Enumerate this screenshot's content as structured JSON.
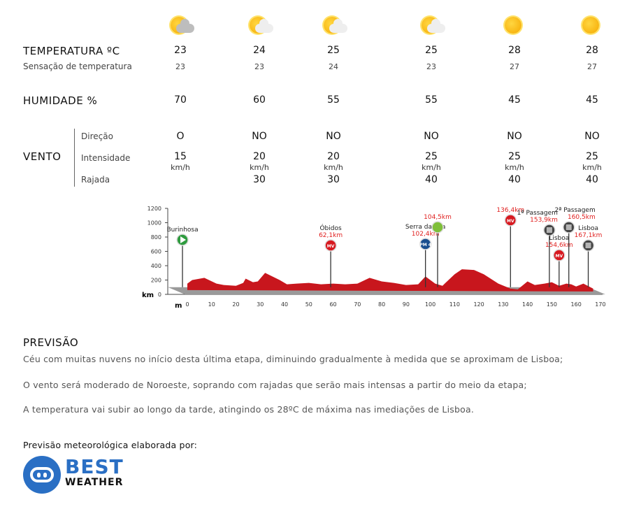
{
  "columns": [
    {
      "icon": "sun-grey-cloud-icon",
      "cloud": "#bdbdbd",
      "temp": "23",
      "feels": "23",
      "humidity": "70",
      "dir": "O",
      "speed": "15",
      "unit": "km/h",
      "gust": ""
    },
    {
      "icon": "sun-cloud-icon",
      "cloud": "#eeeeee",
      "temp": "24",
      "feels": "23",
      "humidity": "60",
      "dir": "NO",
      "speed": "20",
      "unit": "km/h",
      "gust": "30"
    },
    {
      "icon": "sun-cloud-icon",
      "cloud": "#eeeeee",
      "temp": "25",
      "feels": "24",
      "humidity": "55",
      "dir": "NO",
      "speed": "20",
      "unit": "km/h",
      "gust": "30"
    },
    {
      "icon": "sun-cloud-icon",
      "cloud": "#eeeeee",
      "temp": "25",
      "feels": "23",
      "humidity": "55",
      "dir": "NO",
      "speed": "25",
      "unit": "km/h",
      "gust": "40"
    },
    {
      "icon": "sun-icon",
      "cloud": "",
      "temp": "28",
      "feels": "27",
      "humidity": "45",
      "dir": "NO",
      "speed": "25",
      "unit": "km/h",
      "gust": "40"
    },
    {
      "icon": "sun-icon",
      "cloud": "",
      "temp": "28",
      "feels": "27",
      "humidity": "45",
      "dir": "NO",
      "speed": "25",
      "unit": "km/h",
      "gust": "40"
    }
  ],
  "labels": {
    "temperature": "TEMPERATURA  ºC",
    "feels": "Sensação de temperatura",
    "humidity": "HUMIDADE %",
    "wind": "VENTO",
    "direction": "Direção",
    "intensity": "Intensidade",
    "gust": "Rajada"
  },
  "forecast": {
    "title": "PREVISÃO",
    "paragraphs": [
      "Céu com muitas nuvens no início desta última etapa, diminuindo gradualmente à medida que se aproximam de Lisboa;",
      "O vento será moderado de Noroeste, soprando com rajadas que serão mais intensas a partir do meio da etapa;",
      "A temperatura vai subir ao longo da tarde, atingindo os 28ºC de máxima nas imediações de Lisboa."
    ],
    "credit": "Previsão meteorológica elaborada por:",
    "logo": {
      "line1": "BEST",
      "line2": "WEATHER",
      "color": "#2a6fc4"
    }
  },
  "profile": {
    "x_unit": "km",
    "y_unit": "m",
    "x_ticks": [
      0,
      10,
      20,
      30,
      40,
      50,
      60,
      70,
      80,
      90,
      100,
      110,
      120,
      130,
      140,
      150,
      160,
      170
    ],
    "y_ticks": [
      0,
      200,
      400,
      600,
      800,
      1000,
      1200
    ],
    "elevation": [
      [
        0,
        150
      ],
      [
        2,
        200
      ],
      [
        7,
        230
      ],
      [
        12,
        150
      ],
      [
        15,
        130
      ],
      [
        20,
        120
      ],
      [
        23,
        160
      ],
      [
        24,
        220
      ],
      [
        27,
        170
      ],
      [
        29,
        180
      ],
      [
        32,
        300
      ],
      [
        38,
        200
      ],
      [
        41,
        140
      ],
      [
        45,
        150
      ],
      [
        50,
        160
      ],
      [
        55,
        140
      ],
      [
        60,
        150
      ],
      [
        65,
        140
      ],
      [
        70,
        150
      ],
      [
        75,
        230
      ],
      [
        80,
        180
      ],
      [
        85,
        160
      ],
      [
        90,
        130
      ],
      [
        95,
        140
      ],
      [
        98,
        250
      ],
      [
        102,
        150
      ],
      [
        105,
        120
      ],
      [
        110,
        280
      ],
      [
        113,
        350
      ],
      [
        118,
        340
      ],
      [
        122,
        280
      ],
      [
        128,
        150
      ],
      [
        133,
        80
      ],
      [
        136,
        70
      ],
      [
        140,
        180
      ],
      [
        143,
        130
      ],
      [
        147,
        150
      ],
      [
        150,
        170
      ],
      [
        153,
        120
      ],
      [
        156,
        150
      ],
      [
        158,
        140
      ],
      [
        160,
        110
      ],
      [
        163,
        150
      ],
      [
        167,
        80
      ]
    ],
    "color": "#c8161d",
    "markers": [
      {
        "km": -2,
        "name": "Burinhosa",
        "dist": "",
        "badge": "start",
        "text": ""
      },
      {
        "km": 59,
        "name": "Óbidos",
        "dist": "62,1km",
        "badge": "sprint",
        "text": "MV"
      },
      {
        "km": 98,
        "name": "Serra da Vila",
        "dist": "102,4km",
        "badge": "climb",
        "text": "PM 4"
      },
      {
        "km": 103,
        "name": "",
        "dist": "104,5km",
        "badge": "feed",
        "text": ""
      },
      {
        "km": 133,
        "name": "",
        "dist": "136,4km",
        "badge": "sprint",
        "text": "MV"
      },
      {
        "km": 149,
        "name": "1ª Passagem",
        "dist": "153,9km",
        "badge": "flag",
        "text": ""
      },
      {
        "km": 153,
        "name": "Lisboa",
        "dist": "154,6km",
        "badge": "sprint",
        "text": "MV"
      },
      {
        "km": 157,
        "name": "2ª Passagem",
        "dist": "160,5km",
        "badge": "flag",
        "text": ""
      },
      {
        "km": 165,
        "name": "Lisboa",
        "dist": "167,1km",
        "badge": "flag",
        "text": ""
      }
    ]
  }
}
